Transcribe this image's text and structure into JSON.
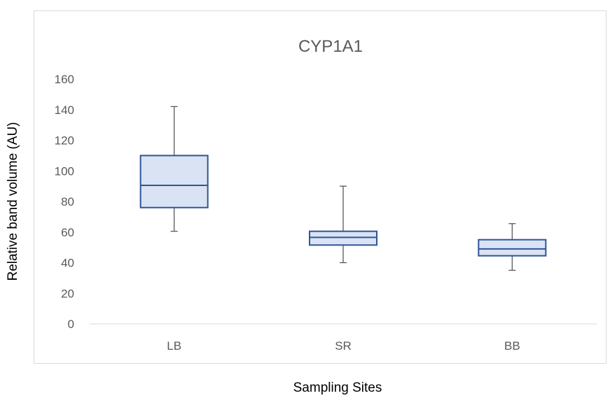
{
  "chart_data": {
    "type": "box",
    "title": "CYP1A1",
    "xlabel": "Sampling Sites",
    "ylabel": "Relative band volume (AU)",
    "ylim": [
      0,
      160
    ],
    "yticks": [
      0,
      20,
      40,
      60,
      80,
      100,
      120,
      140,
      160
    ],
    "grid": false,
    "categories": [
      "LB",
      "SR",
      "BB"
    ],
    "boxes": [
      {
        "category": "LB",
        "min": 60.5,
        "q1": 76,
        "median": 90.5,
        "q3": 110,
        "max": 142
      },
      {
        "category": "SR",
        "min": 40,
        "q1": 51.5,
        "median": 56.5,
        "q3": 60.5,
        "max": 90
      },
      {
        "category": "BB",
        "min": 35,
        "q1": 44.5,
        "median": 49,
        "q3": 55,
        "max": 65.5
      }
    ],
    "colors": {
      "box_fill": "#dae3f3",
      "box_stroke": "#2f5597",
      "whisker": "#595959",
      "axis": "#d9d9d9"
    }
  }
}
